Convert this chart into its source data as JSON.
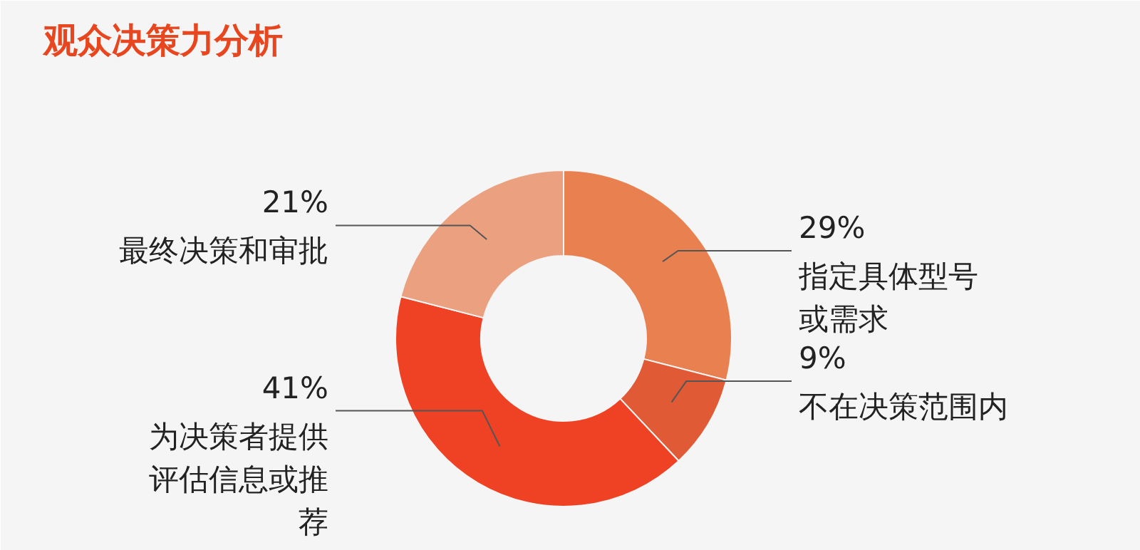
{
  "chart_data": {
    "type": "donut",
    "title": "观众决策力分析",
    "categories": [
      "指定具体型号或需求",
      "不在决策范围内",
      "为决策者提供评估信息或推荐",
      "最终决策和审批"
    ],
    "values": [
      29,
      9,
      41,
      21
    ],
    "colors": [
      "#e8804f",
      "#e05a35",
      "#ef4123",
      "#eba080"
    ],
    "value_labels": [
      "29%",
      "9%",
      "41%",
      "21%"
    ]
  }
}
